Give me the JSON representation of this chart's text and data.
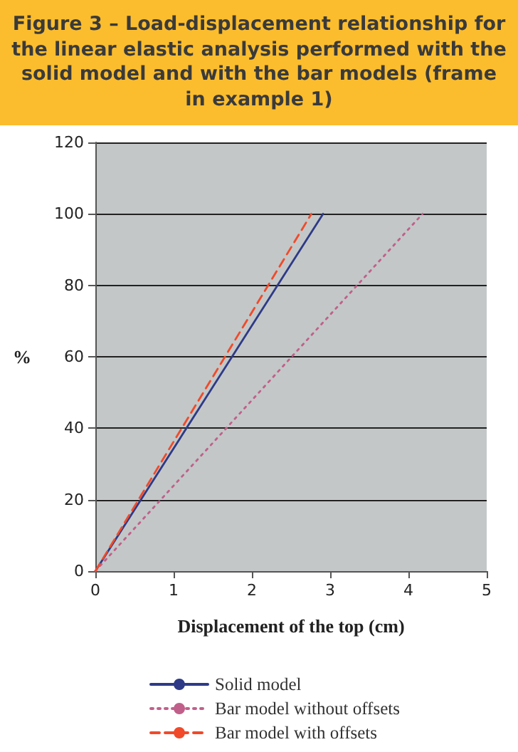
{
  "chart_data": {
    "type": "line",
    "title": "Figure 3 – Load-displacement relationship for the linear elastic analysis performed with the solid model and with the bar models (frame in example 1)",
    "xlabel": "Displacement of the top (cm)",
    "ylabel": "%",
    "x": [
      0,
      2.91
    ],
    "series": [
      {
        "name": "Solid model",
        "color": "#2e3a87",
        "line_style": "solid",
        "values": [
          0,
          100
        ]
      },
      {
        "name": "Bar model without offsets",
        "color": "#c0608a",
        "line_style": "dotted",
        "x": [
          0,
          4.18
        ],
        "values": [
          0,
          100
        ]
      },
      {
        "name": "Bar model with offsets",
        "color": "#f04a2a",
        "line_style": "dashed",
        "x": [
          0,
          2.76
        ],
        "values": [
          0,
          100
        ]
      }
    ],
    "xlim": [
      0,
      5
    ],
    "xticks": [
      0,
      1,
      2,
      3,
      4,
      5
    ],
    "ylim": [
      0,
      120
    ],
    "yticks": [
      0,
      20,
      40,
      60,
      80,
      100,
      120
    ],
    "grid": "y",
    "legend": "bottom",
    "marker": "none"
  }
}
